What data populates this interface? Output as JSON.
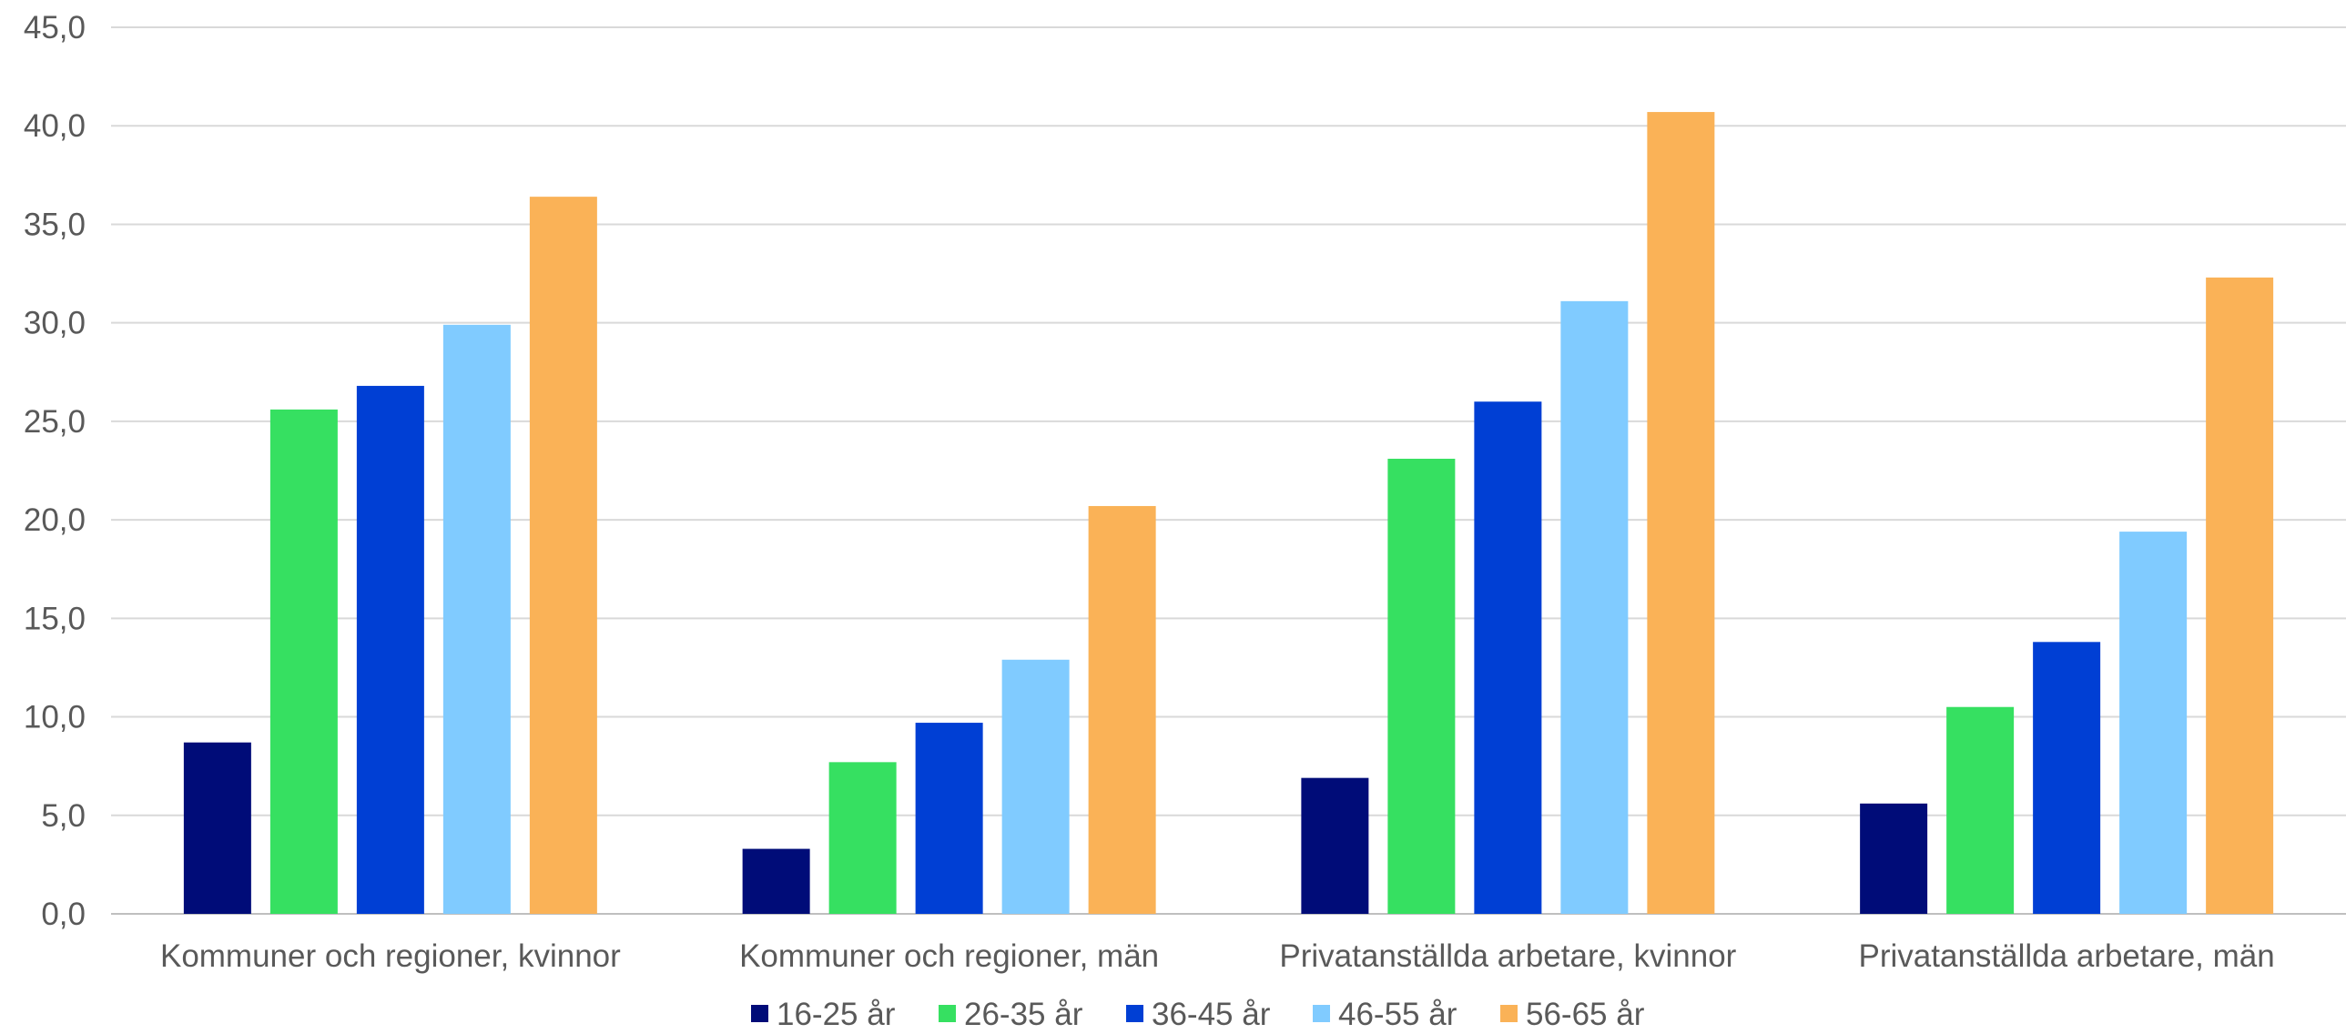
{
  "chart_data": {
    "type": "bar",
    "title": "",
    "xlabel": "",
    "ylabel": "",
    "ylim": [
      0,
      45
    ],
    "ytick_step": 5,
    "ytick_decimals": 1,
    "ytick_decimal_separator": ",",
    "grid": true,
    "legend_position": "bottom",
    "categories": [
      "Kommuner och regioner, kvinnor",
      "Kommuner och regioner, män",
      "Privatanställda arbetare, kvinnor",
      "Privatanställda arbetare, män"
    ],
    "series": [
      {
        "name": "16-25 år",
        "color": "#000C78",
        "values": [
          8.7,
          3.3,
          6.9,
          5.6
        ]
      },
      {
        "name": "26-35 år",
        "color": "#36E061",
        "values": [
          25.6,
          7.7,
          23.1,
          10.5
        ]
      },
      {
        "name": "36-45 år",
        "color": "#003FD4",
        "values": [
          26.8,
          9.7,
          26.0,
          13.8
        ]
      },
      {
        "name": "46-55 år",
        "color": "#80CBFF",
        "values": [
          29.9,
          12.9,
          31.1,
          19.4
        ]
      },
      {
        "name": "56-65 år",
        "color": "#FAB257",
        "values": [
          36.4,
          20.7,
          40.7,
          32.3
        ]
      }
    ]
  }
}
